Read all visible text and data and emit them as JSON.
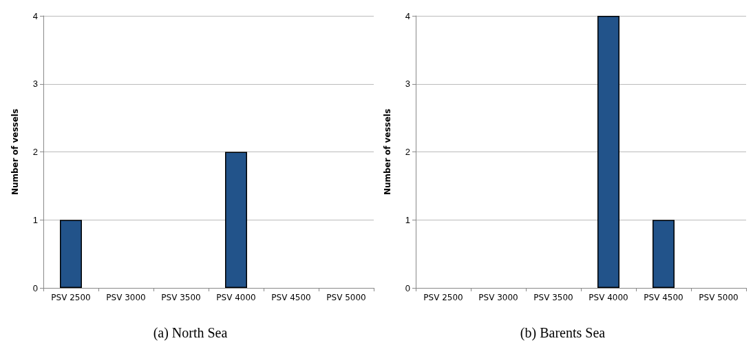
{
  "chart_data": [
    {
      "type": "bar",
      "title": "(a) North Sea",
      "ylabel": "Number of vessels",
      "categories": [
        "PSV 2500",
        "PSV 3000",
        "PSV 3500",
        "PSV 4000",
        "PSV 4500",
        "PSV 5000"
      ],
      "values": [
        1,
        0,
        0,
        2,
        0,
        0
      ],
      "color": "#22538a",
      "ylim": [
        0,
        4
      ],
      "yticks": [
        0,
        1,
        2,
        3,
        4
      ],
      "grid": "y"
    },
    {
      "type": "bar",
      "title": "(b) Barents Sea",
      "ylabel": "Number of vessels",
      "categories": [
        "PSV 2500",
        "PSV 3000",
        "PSV 3500",
        "PSV 4000",
        "PSV 4500",
        "PSV 5000"
      ],
      "values": [
        0,
        0,
        0,
        4,
        1,
        0
      ],
      "color": "#22538a",
      "ylim": [
        0,
        4
      ],
      "yticks": [
        0,
        1,
        2,
        3,
        4
      ],
      "grid": "y"
    }
  ]
}
